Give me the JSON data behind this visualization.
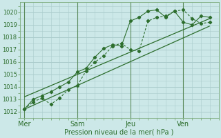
{
  "background_color": "#cce8e8",
  "plot_bg_color": "#cce8e8",
  "grid_color": "#aacccc",
  "line_color": "#2d6e2d",
  "xlabel": "Pression niveau de la mer( hPa )",
  "ylim": [
    1011.5,
    1020.8
  ],
  "yticks": [
    1012,
    1013,
    1014,
    1015,
    1016,
    1017,
    1018,
    1019,
    1020
  ],
  "day_labels": [
    "Mer",
    "Sam",
    "Jeu",
    "Ven"
  ],
  "day_positions": [
    0,
    36,
    72,
    108
  ],
  "xlim": [
    -3,
    132
  ],
  "series1_x": [
    0,
    6,
    12,
    18,
    24,
    30,
    36,
    42,
    48,
    54,
    60,
    66,
    72,
    78,
    84,
    90,
    96,
    102,
    108,
    114,
    120,
    126
  ],
  "series1_y": [
    1012.2,
    1012.8,
    1013.1,
    1012.6,
    1013.1,
    1013.8,
    1014.1,
    1015.3,
    1016.0,
    1016.5,
    1017.3,
    1017.5,
    1017.0,
    1016.9,
    1019.3,
    1019.6,
    1019.7,
    1020.1,
    1020.2,
    1019.5,
    1019.1,
    1019.2
  ],
  "series2_x": [
    0,
    6,
    12,
    18,
    24,
    30,
    36,
    42,
    48,
    54,
    60,
    66,
    72,
    78,
    84,
    90,
    96,
    102,
    108,
    114,
    120,
    126
  ],
  "series2_y": [
    1012.2,
    1013.0,
    1013.3,
    1013.6,
    1014.0,
    1014.4,
    1015.2,
    1015.5,
    1016.4,
    1017.1,
    1017.4,
    1017.3,
    1019.3,
    1019.6,
    1020.1,
    1020.2,
    1019.6,
    1020.1,
    1019.2,
    1019.0,
    1019.7,
    1019.6
  ],
  "trend1_x": [
    0,
    126
  ],
  "trend1_y": [
    1012.2,
    1018.9
  ],
  "trend2_x": [
    0,
    126
  ],
  "trend2_y": [
    1013.2,
    1019.5
  ],
  "xlabel_fontsize": 7,
  "tick_fontsize": 6
}
